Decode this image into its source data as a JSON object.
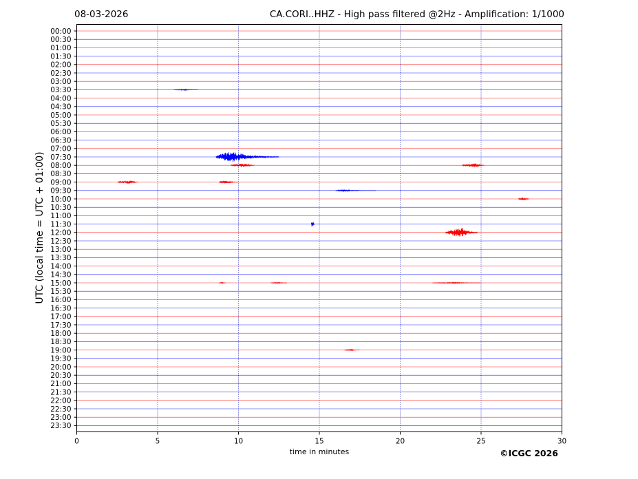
{
  "header": {
    "date": "08-03-2026",
    "title": "CA.CORI..HHZ - High pass filtered @2Hz - Amplification: 1/1000"
  },
  "footer": {
    "copyright": "©ICGC 2026"
  },
  "colors": {
    "trace_odd": "#ff0000",
    "trace_even": "#0000ff",
    "grid": "#0000aa",
    "frame": "#000000"
  },
  "chart_data": {
    "type": "line",
    "title": "CA.CORI..HHZ - High pass filtered @2Hz - Amplification: 1/1000",
    "xlabel": "time in minutes",
    "ylabel": "UTC (local time = UTC + 01:00)",
    "xlim": [
      0,
      30
    ],
    "x_ticks": [
      0,
      5,
      10,
      15,
      20,
      25,
      30
    ],
    "vertical_grid": [
      5,
      10,
      15,
      20,
      25
    ],
    "grid": "dotted vertical",
    "row_labels": [
      "00:00",
      "00:30",
      "01:00",
      "01:30",
      "02:00",
      "02:30",
      "03:00",
      "03:30",
      "04:00",
      "04:30",
      "05:00",
      "05:30",
      "06:00",
      "06:30",
      "07:00",
      "07:30",
      "08:00",
      "08:30",
      "09:00",
      "09:30",
      "10:00",
      "10:30",
      "11:00",
      "11:30",
      "12:00",
      "12:30",
      "13:00",
      "13:30",
      "14:00",
      "14:30",
      "15:00",
      "15:30",
      "16:00",
      "16:30",
      "17:00",
      "17:30",
      "18:00",
      "18:30",
      "19:00",
      "19:30",
      "20:00",
      "20:30",
      "21:00",
      "21:30",
      "22:00",
      "22:30",
      "23:00",
      "23:30"
    ],
    "trace_colors": [
      "#ff0000",
      "#0000ff"
    ],
    "events": [
      {
        "row": "03:30",
        "start": 6.0,
        "end": 7.5,
        "amplitude": 0.08
      },
      {
        "row": "07:30",
        "start": 8.6,
        "end": 12.5,
        "amplitude": 0.85,
        "peak": 9.6
      },
      {
        "row": "08:00",
        "start": 9.5,
        "end": 11.0,
        "amplitude": 0.3,
        "peak": 10.5
      },
      {
        "row": "08:00",
        "start": 23.8,
        "end": 25.2,
        "amplitude": 0.3,
        "peak": 24.8
      },
      {
        "row": "09:00",
        "start": 2.5,
        "end": 3.8,
        "amplitude": 0.25,
        "peak": 3.4
      },
      {
        "row": "09:00",
        "start": 8.8,
        "end": 10.0,
        "amplitude": 0.25,
        "peak": 9.2
      },
      {
        "row": "09:30",
        "start": 16.0,
        "end": 18.5,
        "amplitude": 0.12,
        "peak": 16.5
      },
      {
        "row": "10:00",
        "start": 27.3,
        "end": 28.0,
        "amplitude": 0.25,
        "peak": 27.7
      },
      {
        "row": "11:30",
        "start": 14.5,
        "end": 14.7,
        "amplitude": 0.7,
        "peak": 14.6
      },
      {
        "row": "12:00",
        "start": 22.8,
        "end": 24.8,
        "amplitude": 0.75,
        "peak": 23.9
      },
      {
        "row": "15:00",
        "start": 8.8,
        "end": 9.2,
        "amplitude": 0.08
      },
      {
        "row": "15:00",
        "start": 12.0,
        "end": 13.0,
        "amplitude": 0.08
      },
      {
        "row": "15:00",
        "start": 22.0,
        "end": 25.0,
        "amplitude": 0.08
      },
      {
        "row": "19:00",
        "start": 16.5,
        "end": 17.5,
        "amplitude": 0.1
      }
    ]
  }
}
